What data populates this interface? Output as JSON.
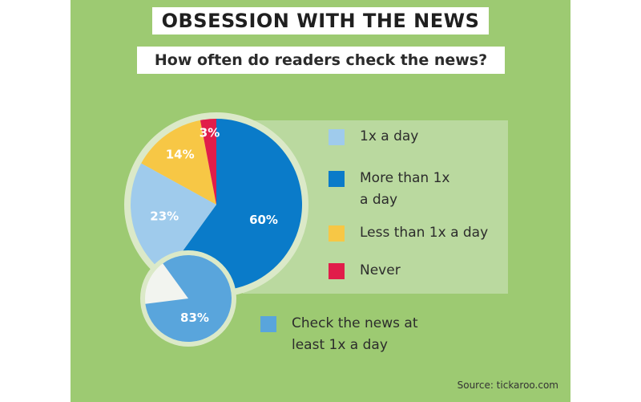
{
  "title": "OBSESSION WITH THE NEWS",
  "subtitle": "How often do readers check the news?",
  "colors": {
    "background": "#9dca72",
    "legend_panel": "#bad99f",
    "one_per_day": "#9fcbec",
    "more_than_one": "#0a7bc9",
    "less_than_one": "#f7c745",
    "never": "#e11d4a",
    "at_least_one": "#59a5dc"
  },
  "chart_data": [
    {
      "type": "pie",
      "slices": [
        {
          "label": "1x a day",
          "value": 23,
          "display": "23%"
        },
        {
          "label": "More than 1x a day",
          "value": 60,
          "display": "60%"
        },
        {
          "label": "Less than 1x a day",
          "value": 14,
          "display": "14%"
        },
        {
          "label": "Never",
          "value": 3,
          "display": "3%"
        }
      ]
    },
    {
      "type": "pie",
      "slices": [
        {
          "label": "Check the news at least 1x a day",
          "value": 83,
          "display": "83%"
        }
      ]
    }
  ],
  "legend": [
    {
      "line1": "1x a day",
      "line2": ""
    },
    {
      "line1": "More than 1x",
      "line2": "a day"
    },
    {
      "line1": "Less than 1x a day",
      "line2": ""
    },
    {
      "line1": "Never",
      "line2": ""
    }
  ],
  "legend_secondary": {
    "line1": "Check the news at",
    "line2": "least 1x a day"
  },
  "source": "Source: tickaroo.com"
}
